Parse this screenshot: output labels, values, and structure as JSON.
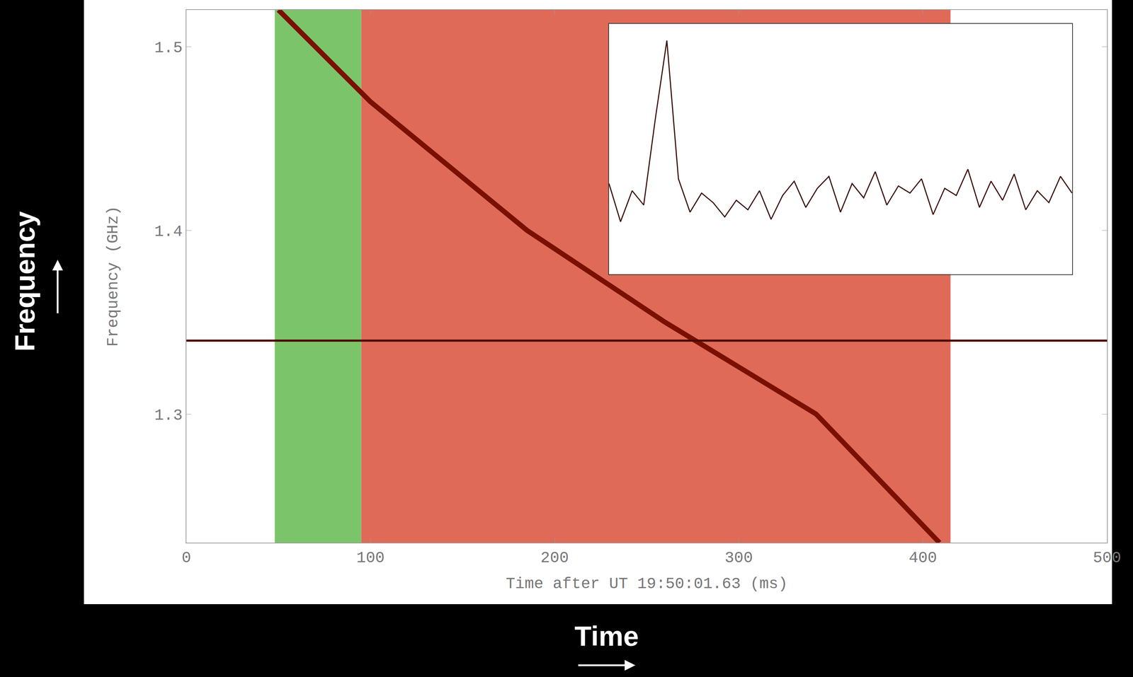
{
  "chart_data": [
    {
      "type": "line",
      "x_label": "Time after UT 19:50:01.63 (ms)",
      "y_label": "Frequency (GHz)",
      "outer_x_label": "Time",
      "outer_y_label": "Frequency",
      "x": [
        50,
        100,
        185,
        260,
        342,
        409
      ],
      "values": [
        1.52,
        1.47,
        1.4,
        1.35,
        1.3,
        1.23
      ],
      "color": "#7a1000",
      "xlim": [
        0,
        500
      ],
      "ylim": [
        1.23,
        1.52
      ],
      "xticks": [
        0,
        100,
        200,
        300,
        400,
        500
      ],
      "yticks": [
        1.3,
        1.4,
        1.5
      ],
      "regions": [
        {
          "x0": 48,
          "x1": 95,
          "color": "#7cc46a"
        },
        {
          "x0": 95,
          "x1": 415,
          "color": "#e06a58"
        }
      ],
      "hlines": [
        1.34
      ],
      "grid": false
    },
    {
      "type": "line",
      "x": [
        0,
        1,
        2,
        3,
        4,
        5,
        6,
        7,
        8,
        9,
        10,
        11,
        12,
        13,
        14,
        15,
        16,
        17,
        18,
        19,
        20,
        21,
        22,
        23,
        24,
        25,
        26,
        27,
        28,
        29,
        30,
        31,
        32,
        33,
        34,
        35,
        36,
        37,
        38,
        39,
        40
      ],
      "values": [
        3.8,
        2.2,
        3.5,
        2.9,
        6.5,
        9.8,
        4.0,
        2.6,
        3.4,
        3.0,
        2.4,
        3.1,
        2.7,
        3.5,
        2.3,
        3.3,
        3.9,
        2.8,
        3.6,
        4.1,
        2.6,
        3.8,
        3.2,
        4.3,
        2.9,
        3.7,
        3.4,
        4.0,
        2.5,
        3.6,
        3.3,
        4.4,
        2.8,
        3.9,
        3.1,
        4.2,
        2.7,
        3.5,
        3.0,
        4.1,
        3.4
      ],
      "color": "#3a0a05",
      "xlim": [
        0,
        40
      ],
      "ylim": [
        0,
        10.5
      ],
      "tick_labels": false,
      "grid": false
    }
  ]
}
